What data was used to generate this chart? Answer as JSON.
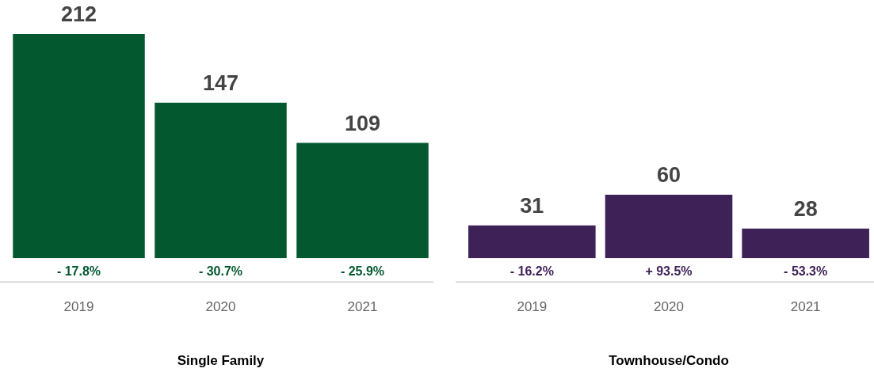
{
  "chart_data": [
    {
      "type": "bar",
      "xlabel": "Single Family",
      "categories": [
        "2019",
        "2020",
        "2021"
      ],
      "values": [
        212,
        147,
        109
      ],
      "color": "#03582f",
      "data_labels": true,
      "annotations": [
        "- 17.8%",
        "- 30.7%",
        "- 25.9%"
      ]
    },
    {
      "type": "bar",
      "xlabel": "Townhouse/Condo",
      "categories": [
        "2019",
        "2020",
        "2021"
      ],
      "values": [
        31,
        60,
        28
      ],
      "color": "#3e2157",
      "data_labels": true,
      "annotations": [
        "- 16.2%",
        "+ 93.5%",
        "- 53.3%"
      ]
    }
  ]
}
